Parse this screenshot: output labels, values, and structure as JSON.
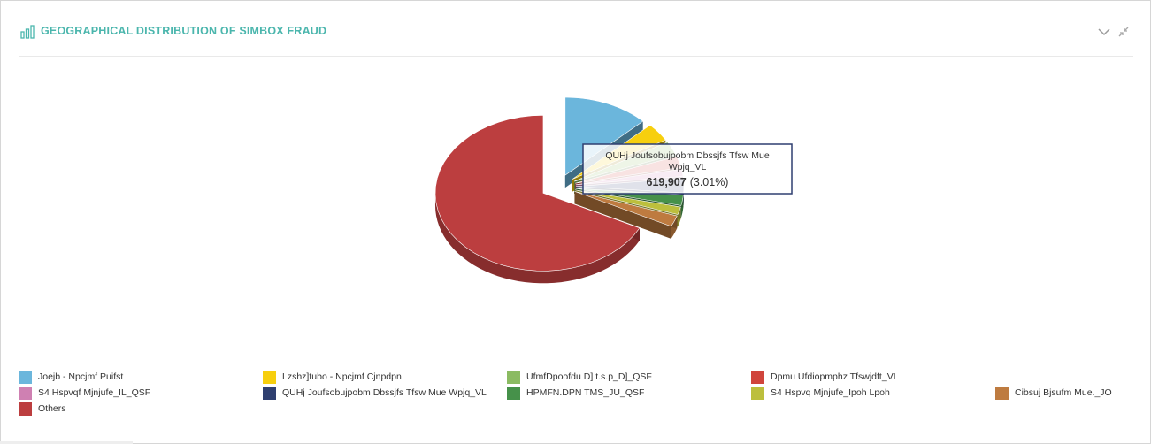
{
  "header": {
    "title": "GEOGRAPHICAL DISTRIBUTION OF SIMBOX FRAUD",
    "title_icon": "bar-chart-icon",
    "collapse_icon": "chevron-down-icon",
    "compress_icon": "compress-icon"
  },
  "chart_data": {
    "type": "pie",
    "variant": "3d",
    "title": "GEOGRAPHICAL DISTRIBUTION OF SIMBOX FRAUD",
    "legend_position": "bottom",
    "series": [
      {
        "name": "Joejb - Npcjmf Puifst",
        "percent": 12.8,
        "color": "#6bb6dc"
      },
      {
        "name": "Lzshz]tubo - Npcjmf Cjnpdpn",
        "percent": 3.8,
        "color": "#f7cf0e"
      },
      {
        "name": "UfmfDpoofdu D] t.s.p_D]_QSF",
        "percent": 2.8,
        "color": "#8bbb62"
      },
      {
        "name": "Dpmu Ufdiopmphz Tfswjdft_VL",
        "percent": 2.4,
        "color": "#d0453c"
      },
      {
        "name": "S4 Hspvqf Mjnjufe_IL_QSF",
        "percent": 1.5,
        "color": "#cf80b2"
      },
      {
        "name": "QUHj Joufsobujpobm Dbssjfs Tfsw Mue Wpjq_VL",
        "percent": 3.01,
        "color": "#2f3f70"
      },
      {
        "name": "HPMFN.DPN TMS_JU_QSF",
        "percent": 2.2,
        "color": "#46914a"
      },
      {
        "name": "S4 Hspvq Mjnjufe_Ipoh Lpoh",
        "percent": 1.6,
        "color": "#bcbf3d"
      },
      {
        "name": "Cibsuj Bjsufm Mue._JO",
        "percent": 2.3,
        "color": "#be7b40"
      },
      {
        "name": "Others",
        "percent": 67.59,
        "color": "#bc3e3f"
      }
    ],
    "tooltip": {
      "series_name_line1": "QUHj Joufsobujpobm Dbssjfs Tfsw Mue",
      "series_name_line2": "Wpjq_VL",
      "value": "619,907",
      "percent_text": "(3.01%)"
    }
  }
}
